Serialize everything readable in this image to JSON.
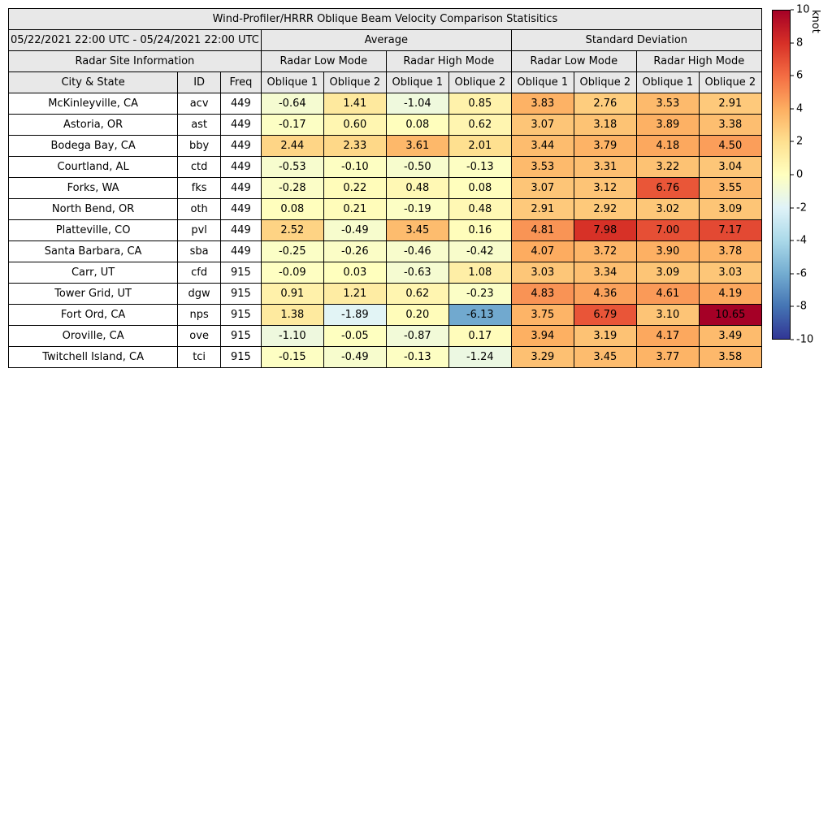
{
  "chart_data": {
    "type": "table",
    "title": "Wind-Profiler/HRRR Oblique Beam Velocity Comparison Statisitics",
    "date_range_label": "05/22/2021 22:00 UTC - 05/24/2021 22:00 UTC",
    "group_headers": {
      "average": "Average",
      "standard_deviation": "Standard Deviation",
      "site_info": "Radar Site Information",
      "low_mode": "Radar Low Mode",
      "high_mode": "Radar High Mode"
    },
    "column_headers": {
      "city_state": "City & State",
      "id": "ID",
      "freq": "Freq",
      "oblique1": "Oblique 1",
      "oblique2": "Oblique 2"
    },
    "rows": [
      {
        "city_state": "McKinleyville, CA",
        "id": "acv",
        "freq": "449",
        "values": [
          "-0.64",
          "1.41",
          "-1.04",
          "0.85",
          "3.83",
          "2.76",
          "3.53",
          "2.91"
        ]
      },
      {
        "city_state": "Astoria, OR",
        "id": "ast",
        "freq": "449",
        "values": [
          "-0.17",
          "0.60",
          "0.08",
          "0.62",
          "3.07",
          "3.18",
          "3.89",
          "3.38"
        ]
      },
      {
        "city_state": "Bodega Bay, CA",
        "id": "bby",
        "freq": "449",
        "values": [
          "2.44",
          "2.33",
          "3.61",
          "2.01",
          "3.44",
          "3.79",
          "4.18",
          "4.50"
        ]
      },
      {
        "city_state": "Courtland, AL",
        "id": "ctd",
        "freq": "449",
        "values": [
          "-0.53",
          "-0.10",
          "-0.50",
          "-0.13",
          "3.53",
          "3.31",
          "3.22",
          "3.04"
        ]
      },
      {
        "city_state": "Forks, WA",
        "id": "fks",
        "freq": "449",
        "values": [
          "-0.28",
          "0.22",
          "0.48",
          "0.08",
          "3.07",
          "3.12",
          "6.76",
          "3.55"
        ]
      },
      {
        "city_state": "North Bend, OR",
        "id": "oth",
        "freq": "449",
        "values": [
          "0.08",
          "0.21",
          "-0.19",
          "0.48",
          "2.91",
          "2.92",
          "3.02",
          "3.09"
        ]
      },
      {
        "city_state": "Platteville, CO",
        "id": "pvl",
        "freq": "449",
        "values": [
          "2.52",
          "-0.49",
          "3.45",
          "0.16",
          "4.81",
          "7.98",
          "7.00",
          "7.17"
        ]
      },
      {
        "city_state": "Santa Barbara, CA",
        "id": "sba",
        "freq": "449",
        "values": [
          "-0.25",
          "-0.26",
          "-0.46",
          "-0.42",
          "4.07",
          "3.72",
          "3.90",
          "3.78"
        ]
      },
      {
        "city_state": "Carr, UT",
        "id": "cfd",
        "freq": "915",
        "values": [
          "-0.09",
          "0.03",
          "-0.63",
          "1.08",
          "3.03",
          "3.34",
          "3.09",
          "3.03"
        ]
      },
      {
        "city_state": "Tower Grid, UT",
        "id": "dgw",
        "freq": "915",
        "values": [
          "0.91",
          "1.21",
          "0.62",
          "-0.23",
          "4.83",
          "4.36",
          "4.61",
          "4.19"
        ]
      },
      {
        "city_state": "Fort Ord, CA",
        "id": "nps",
        "freq": "915",
        "values": [
          "1.38",
          "-1.89",
          "0.20",
          "-6.13",
          "3.75",
          "6.79",
          "3.10",
          "10.65"
        ]
      },
      {
        "city_state": "Oroville, CA",
        "id": "ove",
        "freq": "915",
        "values": [
          "-1.10",
          "-0.05",
          "-0.87",
          "0.17",
          "3.94",
          "3.19",
          "4.17",
          "3.49"
        ]
      },
      {
        "city_state": "Twitchell Island, CA",
        "id": "tci",
        "freq": "915",
        "values": [
          "-0.15",
          "-0.49",
          "-0.13",
          "-1.24",
          "3.29",
          "3.45",
          "3.77",
          "3.58"
        ]
      }
    ],
    "colorbar": {
      "label": "knot",
      "min": -10,
      "max": 10,
      "tick_labels": [
        "10",
        "8",
        "6",
        "4",
        "2",
        "0",
        "-2",
        "-4",
        "-6",
        "-8",
        "-10"
      ],
      "colormap_min_to_max": [
        "#313695",
        "#4575b4",
        "#74add1",
        "#abd9e9",
        "#e0f3f8",
        "#ffffbf",
        "#fee090",
        "#fdae61",
        "#f46d43",
        "#d73027",
        "#a50026"
      ]
    }
  }
}
